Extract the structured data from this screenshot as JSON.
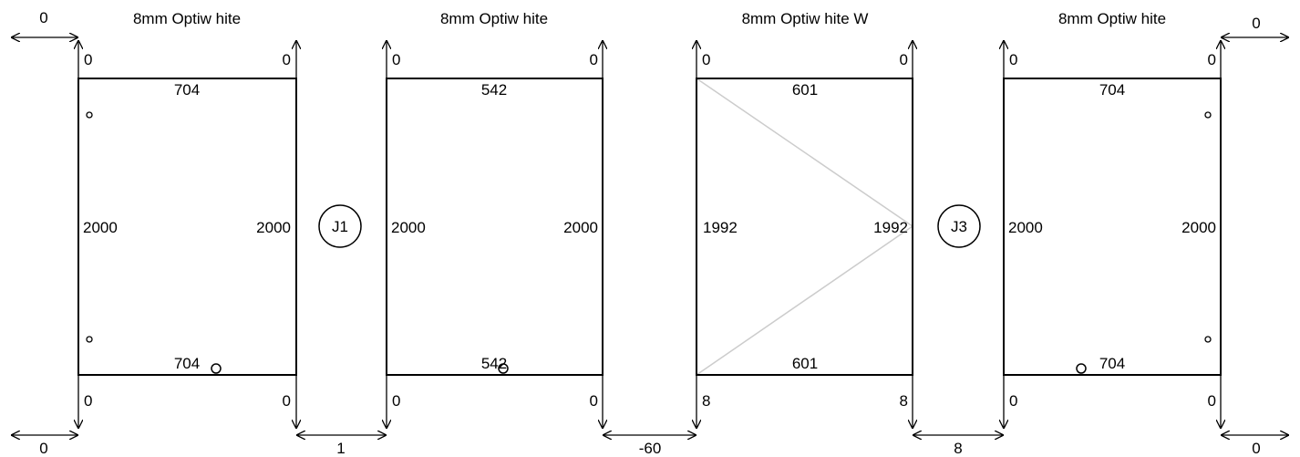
{
  "panels": [
    {
      "title": "8mm Optiw hite",
      "top_width": "704",
      "bottom_width": "704",
      "left_height": "2000",
      "right_height": "2000",
      "corner_top_left": "0",
      "corner_top_right": "0",
      "corner_bottom_left": "0",
      "corner_bottom_right": "0",
      "diagonal": false
    },
    {
      "title": "8mm Optiw hite",
      "top_width": "542",
      "bottom_width": "542",
      "left_height": "2000",
      "right_height": "2000",
      "corner_top_left": "0",
      "corner_top_right": "0",
      "corner_bottom_left": "0",
      "corner_bottom_right": "0",
      "diagonal": false
    },
    {
      "title": "8mm Optiw hite W",
      "top_width": "601",
      "bottom_width": "601",
      "left_height": "1992",
      "right_height": "1992",
      "corner_top_left": "0",
      "corner_top_right": "0",
      "corner_bottom_left": "8",
      "corner_bottom_right": "8",
      "diagonal": true
    },
    {
      "title": "8mm Optiw hite",
      "top_width": "704",
      "bottom_width": "704",
      "left_height": "2000",
      "right_height": "2000",
      "corner_top_left": "0",
      "corner_top_right": "0",
      "corner_bottom_left": "0",
      "corner_bottom_right": "0",
      "diagonal": false
    }
  ],
  "joints": [
    {
      "label": "J1"
    },
    {
      "label": "J3"
    }
  ],
  "gaps": {
    "left_top": "0",
    "left_bottom": "0",
    "between_1_2": "1",
    "between_2_3": "-60",
    "between_3_4": "8",
    "right_top": "0",
    "right_bottom": "0"
  },
  "colors": {
    "line": "#000000",
    "diagonal": "#cccccc"
  }
}
